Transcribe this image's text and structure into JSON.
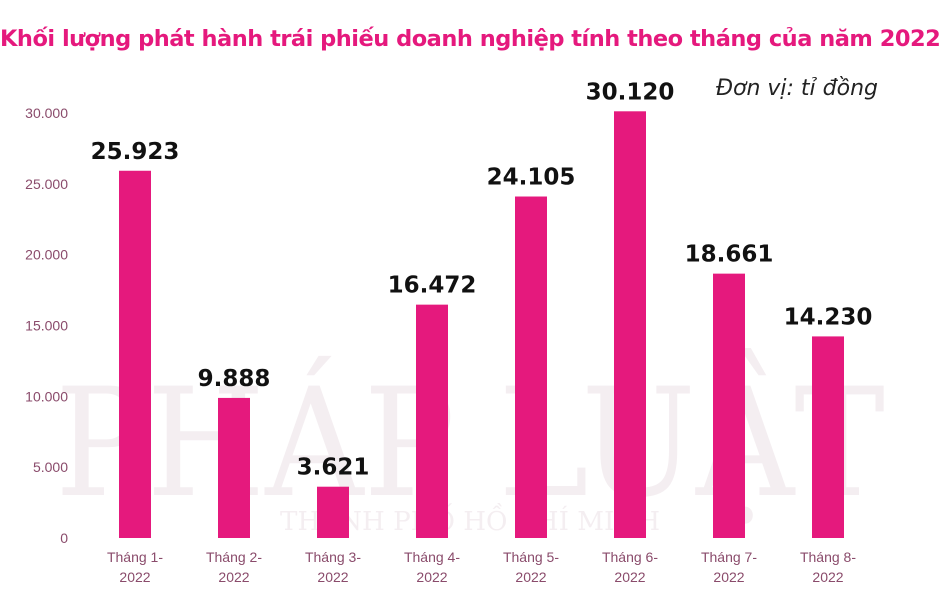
{
  "title": "Khối lượng phát hành trái phiếu doanh nghiệp tính theo tháng của năm 2022",
  "unit_label": "Đơn vị: tỉ đồng",
  "watermark": {
    "main": "PHÁP LUẬT",
    "sub": "THÀNH PHỐ HỒ CHÍ MINH"
  },
  "colors": {
    "bar": "#e5197d",
    "title": "#e5197d",
    "tick": "#8a4b6b",
    "category": "#8a4b6b",
    "value_label": "#111111"
  },
  "chart_data": {
    "type": "bar",
    "categories": [
      [
        "Tháng 1-",
        "2022"
      ],
      [
        "Tháng 2-",
        "2022"
      ],
      [
        "Tháng 3-",
        "2022"
      ],
      [
        "Tháng 4-",
        "2022"
      ],
      [
        "Tháng 5-",
        "2022"
      ],
      [
        "Tháng 6-",
        "2022"
      ],
      [
        "Tháng 7-",
        "2022"
      ],
      [
        "Tháng 8-",
        "2022"
      ]
    ],
    "values": [
      25923,
      9888,
      3621,
      16472,
      24105,
      30120,
      18661,
      14230
    ],
    "value_labels": [
      "25.923",
      "9.888",
      "3.621",
      "16.472",
      "24.105",
      "30.120",
      "18.661",
      "14.230"
    ],
    "y_ticks": [
      0,
      5000,
      10000,
      15000,
      20000,
      25000,
      30000
    ],
    "y_tick_labels": [
      "0",
      "5.000",
      "10.000",
      "15.000",
      "20.000",
      "25.000",
      "30.000"
    ],
    "ylim": [
      0,
      30000
    ],
    "grid": false,
    "legend": "none"
  }
}
